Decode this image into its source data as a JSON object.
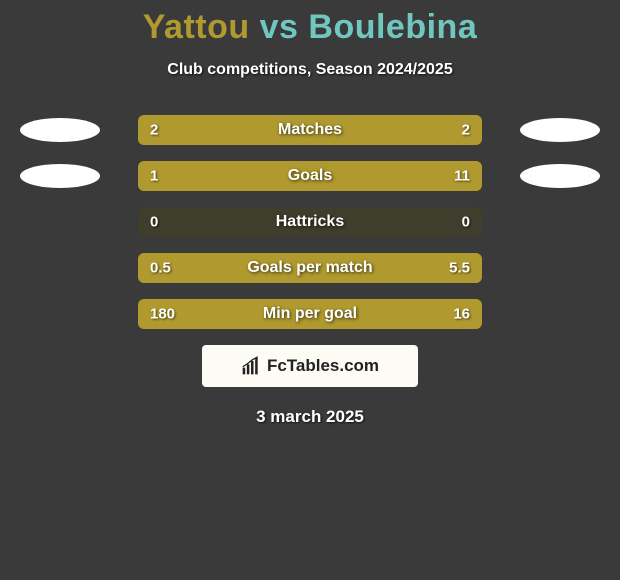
{
  "background_color": "#3a3a3a",
  "title": {
    "player1": "Yattou",
    "vs": "vs",
    "player2": "Boulebina",
    "player1_color": "#b09a2f",
    "vs_color": "#6fc7c0",
    "player2_color": "#6fc7c0",
    "fontsize": 34
  },
  "subtitle": {
    "text": "Club competitions, Season 2024/2025",
    "color": "#ffffff",
    "fontsize": 16
  },
  "photo_placeholder_color": "#ffffff",
  "bar": {
    "track_color": "#3f3d2b",
    "left_fill_color": "#b09a2f",
    "right_fill_color": "#b09a2f",
    "height": 30,
    "border_radius": 6
  },
  "stats": [
    {
      "label": "Matches",
      "left_val": "2",
      "right_val": "2",
      "left_pct": 50,
      "right_pct": 50,
      "show_left_photo": true,
      "show_right_photo": true
    },
    {
      "label": "Goals",
      "left_val": "1",
      "right_val": "11",
      "left_pct": 18,
      "right_pct": 82,
      "show_left_photo": true,
      "show_right_photo": true
    },
    {
      "label": "Hattricks",
      "left_val": "0",
      "right_val": "0",
      "left_pct": 0,
      "right_pct": 0,
      "show_left_photo": false,
      "show_right_photo": false
    },
    {
      "label": "Goals per match",
      "left_val": "0.5",
      "right_val": "5.5",
      "left_pct": 18,
      "right_pct": 82,
      "show_left_photo": false,
      "show_right_photo": false
    },
    {
      "label": "Min per goal",
      "left_val": "180",
      "right_val": "16",
      "left_pct": 78,
      "right_pct": 22,
      "show_left_photo": false,
      "show_right_photo": false
    }
  ],
  "branding": {
    "text": "FcTables.com",
    "icon_name": "bar-chart-icon",
    "bg_color": "#fcfbf4",
    "text_color": "#222222"
  },
  "date": {
    "text": "3 march 2025",
    "color": "#ffffff",
    "fontsize": 17
  }
}
